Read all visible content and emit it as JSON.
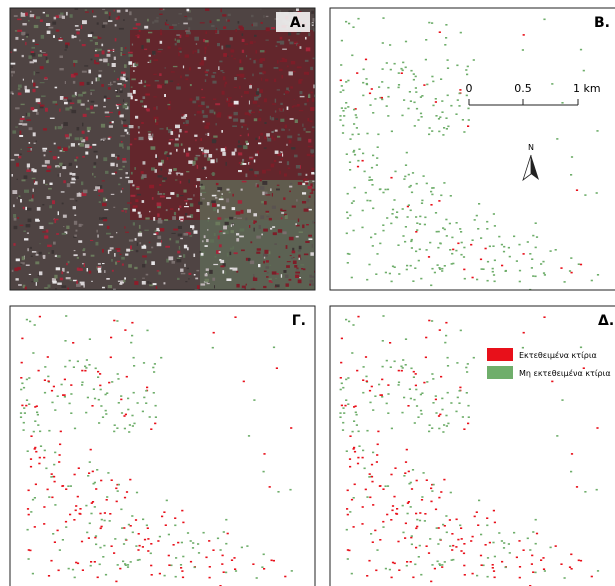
{
  "panels": [
    {
      "label": "Α."
    },
    {
      "label": "Β."
    },
    {
      "label": "Γ."
    },
    {
      "label": "Δ."
    }
  ],
  "scale_bar": {
    "labels": [
      "0",
      "0.5",
      "1 km"
    ]
  },
  "north_arrow": {
    "label": "N"
  },
  "legend": {
    "items": [
      {
        "label": "Εκτεθειμένα κτίρια",
        "color": "#e8101a"
      },
      {
        "label": "Μη εκτεθειμένα κτίρια",
        "color": "#6fae6b"
      }
    ]
  }
}
